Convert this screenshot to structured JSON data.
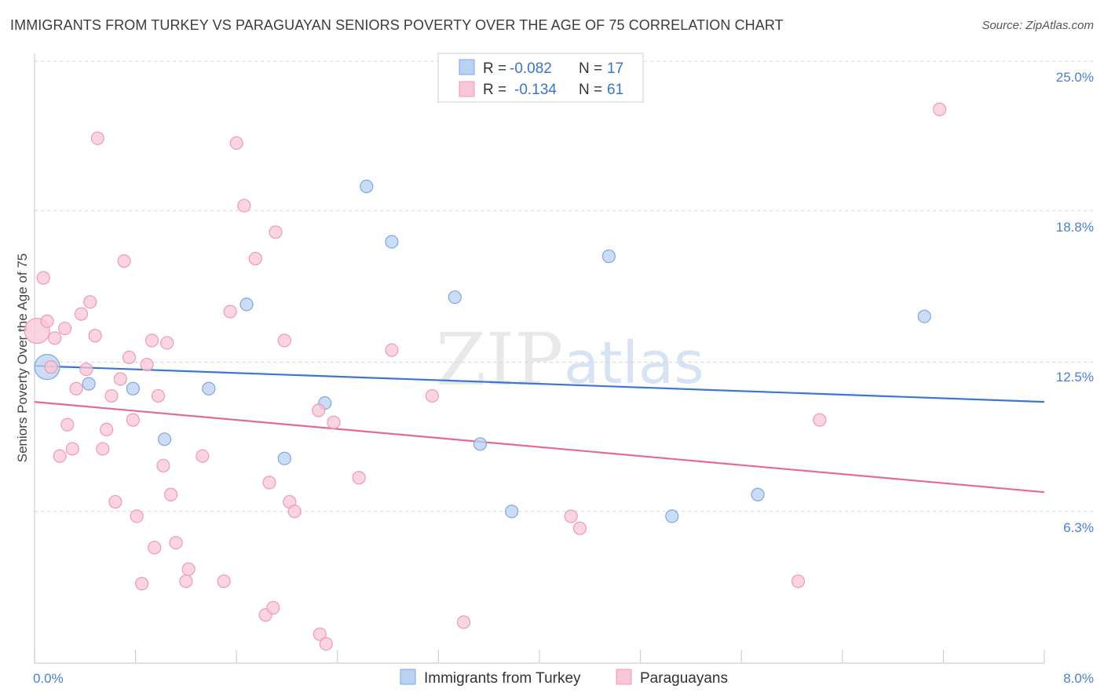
{
  "header": {
    "title": "IMMIGRANTS FROM TURKEY VS PARAGUAYAN SENIORS POVERTY OVER THE AGE OF 75 CORRELATION CHART",
    "source": "Source: ZipAtlas.com"
  },
  "watermark": {
    "zip": "ZIP",
    "atlas": "atlas"
  },
  "colors": {
    "turkey_fill": "#b9d2f3",
    "turkey_stroke": "#7ea6e0",
    "turkey_line": "#3a78d0",
    "paraguay_fill": "#f8c6d5",
    "paraguay_stroke": "#ee9ab4",
    "paraguay_line": "#e46a96",
    "grid": "#d5d5d5",
    "tick_text": "#4a7fd0"
  },
  "legend": {
    "row1": {
      "r_label": "R =",
      "r_value": "-0.082",
      "n_label": "N =",
      "n_value": "17"
    },
    "row2": {
      "r_label": "R =",
      "r_value": "-0.134",
      "n_label": "N =",
      "n_value": "61"
    }
  },
  "bottom_legend": {
    "series1": "Immigrants from Turkey",
    "series2": "Paraguayans"
  },
  "chart_data": {
    "type": "scatter",
    "title": "IMMIGRANTS FROM TURKEY VS PARAGUAYAN SENIORS POVERTY OVER THE AGE OF 75 CORRELATION CHART",
    "xlabel": "",
    "ylabel": "Seniors Poverty Over the Age of 75",
    "xlim": [
      0,
      8.0
    ],
    "ylim": [
      0,
      25.0
    ],
    "x_tick_labels": [
      "0.0%",
      "8.0%"
    ],
    "y_ticks": [
      6.3,
      12.5,
      18.8,
      25.0
    ],
    "y_tick_labels": [
      "6.3%",
      "12.5%",
      "18.8%",
      "25.0%"
    ],
    "grid": true,
    "legend_position": "top-center",
    "series": [
      {
        "name": "Immigrants from Turkey",
        "R": -0.082,
        "N": 17,
        "trend": {
          "x": [
            0.0,
            8.0
          ],
          "y": [
            12.35,
            10.85
          ]
        },
        "points": [
          {
            "x": 0.1,
            "y": 12.3,
            "big": true
          },
          {
            "x": 0.43,
            "y": 11.6
          },
          {
            "x": 0.78,
            "y": 11.4
          },
          {
            "x": 1.03,
            "y": 9.3
          },
          {
            "x": 1.38,
            "y": 11.4
          },
          {
            "x": 1.68,
            "y": 14.9
          },
          {
            "x": 1.98,
            "y": 8.5
          },
          {
            "x": 2.3,
            "y": 10.8
          },
          {
            "x": 2.63,
            "y": 19.8
          },
          {
            "x": 2.83,
            "y": 17.5
          },
          {
            "x": 3.33,
            "y": 15.2
          },
          {
            "x": 3.53,
            "y": 9.1
          },
          {
            "x": 3.78,
            "y": 6.3
          },
          {
            "x": 4.55,
            "y": 16.9
          },
          {
            "x": 5.05,
            "y": 6.1
          },
          {
            "x": 5.73,
            "y": 7.0
          },
          {
            "x": 7.05,
            "y": 14.4
          }
        ]
      },
      {
        "name": "Paraguayans",
        "R": -0.134,
        "N": 61,
        "trend": {
          "x": [
            0.0,
            8.0
          ],
          "y": [
            10.85,
            7.1
          ]
        },
        "points": [
          {
            "x": 0.02,
            "y": 13.8,
            "big": true
          },
          {
            "x": 0.07,
            "y": 16.0
          },
          {
            "x": 0.1,
            "y": 14.2
          },
          {
            "x": 0.13,
            "y": 12.3
          },
          {
            "x": 0.16,
            "y": 13.5
          },
          {
            "x": 0.2,
            "y": 8.6
          },
          {
            "x": 0.24,
            "y": 13.9
          },
          {
            "x": 0.26,
            "y": 9.9
          },
          {
            "x": 0.3,
            "y": 8.9
          },
          {
            "x": 0.33,
            "y": 11.4
          },
          {
            "x": 0.37,
            "y": 14.5
          },
          {
            "x": 0.41,
            "y": 12.2
          },
          {
            "x": 0.44,
            "y": 15.0
          },
          {
            "x": 0.48,
            "y": 13.6
          },
          {
            "x": 0.5,
            "y": 21.8
          },
          {
            "x": 0.54,
            "y": 8.9
          },
          {
            "x": 0.57,
            "y": 9.7
          },
          {
            "x": 0.61,
            "y": 11.1
          },
          {
            "x": 0.64,
            "y": 6.7
          },
          {
            "x": 0.68,
            "y": 11.8
          },
          {
            "x": 0.71,
            "y": 16.7
          },
          {
            "x": 0.75,
            "y": 12.7
          },
          {
            "x": 0.78,
            "y": 10.1
          },
          {
            "x": 0.81,
            "y": 6.1
          },
          {
            "x": 0.85,
            "y": 3.3
          },
          {
            "x": 0.89,
            "y": 12.4
          },
          {
            "x": 0.93,
            "y": 13.4
          },
          {
            "x": 0.95,
            "y": 4.8
          },
          {
            "x": 0.98,
            "y": 11.1
          },
          {
            "x": 1.02,
            "y": 8.2
          },
          {
            "x": 1.05,
            "y": 13.3
          },
          {
            "x": 1.08,
            "y": 7.0
          },
          {
            "x": 1.12,
            "y": 5.0
          },
          {
            "x": 1.2,
            "y": 3.4
          },
          {
            "x": 1.22,
            "y": 3.9
          },
          {
            "x": 1.33,
            "y": 8.6
          },
          {
            "x": 1.5,
            "y": 3.4
          },
          {
            "x": 1.55,
            "y": 14.6
          },
          {
            "x": 1.6,
            "y": 21.6
          },
          {
            "x": 1.66,
            "y": 19.0
          },
          {
            "x": 1.75,
            "y": 16.8
          },
          {
            "x": 1.83,
            "y": 2.0
          },
          {
            "x": 1.86,
            "y": 7.5
          },
          {
            "x": 1.89,
            "y": 2.3
          },
          {
            "x": 1.91,
            "y": 17.9
          },
          {
            "x": 1.98,
            "y": 13.4
          },
          {
            "x": 2.02,
            "y": 6.7
          },
          {
            "x": 2.06,
            "y": 6.3
          },
          {
            "x": 2.25,
            "y": 10.5
          },
          {
            "x": 2.26,
            "y": 1.2
          },
          {
            "x": 2.31,
            "y": 0.8
          },
          {
            "x": 2.37,
            "y": 10.0
          },
          {
            "x": 2.57,
            "y": 7.7
          },
          {
            "x": 2.83,
            "y": 13.0
          },
          {
            "x": 3.15,
            "y": 11.1
          },
          {
            "x": 3.4,
            "y": 1.7
          },
          {
            "x": 4.25,
            "y": 6.1
          },
          {
            "x": 4.32,
            "y": 5.6
          },
          {
            "x": 6.05,
            "y": 3.4
          },
          {
            "x": 6.22,
            "y": 10.1
          },
          {
            "x": 7.17,
            "y": 23.0
          }
        ]
      }
    ]
  }
}
